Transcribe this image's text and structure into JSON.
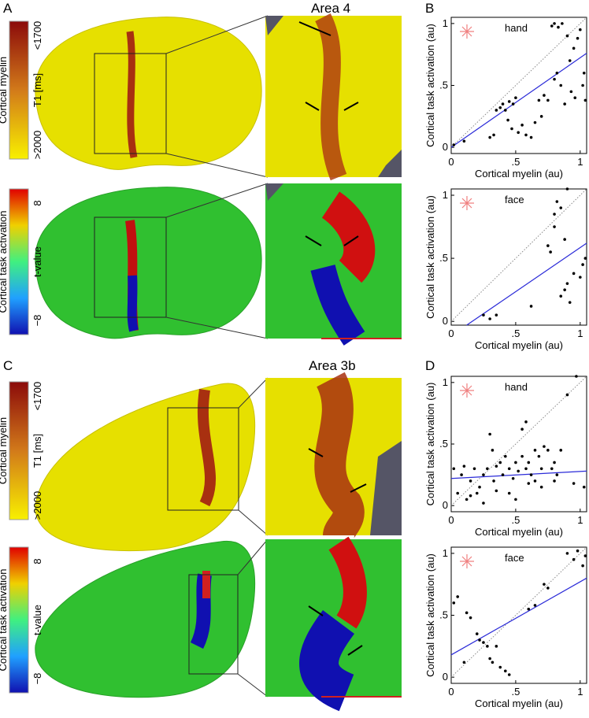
{
  "figure": {
    "panel_labels": [
      "A",
      "B",
      "C",
      "D"
    ],
    "area_labels": [
      "Area 4",
      "Area 3b"
    ],
    "colorbars": [
      {
        "title": "Cortical myelin",
        "unit": "T1 [ms]",
        "top": "<1700",
        "bottom": ">2000"
      },
      {
        "title": "Cortical task activation",
        "unit": "t-value",
        "top": "8",
        "bottom": "−8"
      },
      {
        "title": "Cortical myelin",
        "unit": "T1 [ms]",
        "top": "<1700",
        "bottom": ">2000"
      },
      {
        "title": "Cortical task activation",
        "unit": "t-value",
        "top": "8",
        "bottom": "−8"
      }
    ]
  },
  "chart_data": [
    {
      "type": "scatter",
      "title": "hand",
      "x_label": "Cortical myelin (au)",
      "y_label": "Cortical task activation (au)",
      "xlim": [
        0,
        1.05
      ],
      "ylim": [
        -0.05,
        1.05
      ],
      "xticks": [
        0,
        {
          "value": 0.5,
          "label": ".5"
        },
        1
      ],
      "yticks": [
        0,
        {
          "value": 0.5,
          "label": ".5"
        },
        1
      ],
      "color": "#000000",
      "identity_line": true,
      "fit_line": {
        "x": [
          0,
          1.05
        ],
        "y": [
          0,
          0.76
        ],
        "color": "#2a2ad8"
      },
      "x": [
        0.02,
        0.1,
        0.3,
        0.33,
        0.35,
        0.38,
        0.4,
        0.42,
        0.45,
        0.48,
        0.44,
        0.47,
        0.52,
        0.55,
        0.58,
        0.62,
        0.5,
        0.68,
        0.72,
        0.75,
        0.8,
        0.82,
        0.85,
        0.78,
        0.8,
        0.83,
        0.86,
        0.9,
        0.92,
        0.95,
        0.98,
        1.0,
        0.93,
        0.96,
        1.02,
        1.03,
        1.04,
        0.88,
        0.7,
        0.65
      ],
      "y": [
        0.02,
        0.05,
        0.08,
        0.1,
        0.3,
        0.32,
        0.35,
        0.3,
        0.37,
        0.35,
        0.22,
        0.15,
        0.12,
        0.18,
        0.1,
        0.08,
        0.4,
        0.38,
        0.42,
        0.38,
        0.55,
        0.6,
        0.5,
        0.98,
        1.0,
        0.97,
        1.0,
        0.9,
        0.7,
        0.8,
        0.88,
        0.95,
        0.45,
        0.4,
        0.5,
        0.6,
        0.38,
        0.35,
        0.25,
        0.2
      ]
    },
    {
      "type": "scatter",
      "title": "face",
      "x_label": "Cortical myelin (au)",
      "y_label": "Cortical task activation (au)",
      "xlim": [
        0,
        1.05
      ],
      "ylim": [
        -0.03,
        1.05
      ],
      "xticks": [
        0,
        {
          "value": 0.5,
          "label": ".5"
        },
        1
      ],
      "yticks": [
        0,
        {
          "value": 0.5,
          "label": ".5"
        },
        1
      ],
      "color": "#000000",
      "identity_line": true,
      "fit_line": {
        "x": [
          0.12,
          1.05
        ],
        "y": [
          -0.03,
          0.62
        ],
        "color": "#2a2ad8"
      },
      "x": [
        0.25,
        0.3,
        0.35,
        0.62,
        0.75,
        0.77,
        0.8,
        0.82,
        0.85,
        0.88,
        0.9,
        0.85,
        0.88,
        0.9,
        0.92,
        0.95,
        1.0,
        1.02,
        1.04,
        0.8
      ],
      "y": [
        0.05,
        0.02,
        0.05,
        0.12,
        0.6,
        0.55,
        0.75,
        0.95,
        0.9,
        0.65,
        1.05,
        0.2,
        0.25,
        0.3,
        0.15,
        0.38,
        0.35,
        0.45,
        0.5,
        0.85
      ]
    },
    {
      "type": "scatter",
      "title": "hand",
      "x_label": "Cortical myelin (au)",
      "y_label": "Cortical task activation (au)",
      "xlim": [
        0,
        1.05
      ],
      "ylim": [
        -0.05,
        1.05
      ],
      "xticks": [
        0,
        {
          "value": 0.5,
          "label": ".5"
        },
        1
      ],
      "yticks": [
        0,
        {
          "value": 0.5,
          "label": ".5"
        },
        1
      ],
      "color": "#000000",
      "identity_line": true,
      "fit_line": {
        "x": [
          0,
          1.05
        ],
        "y": [
          0.22,
          0.28
        ],
        "color": "#2a2ad8"
      },
      "x": [
        0.02,
        0.05,
        0.08,
        0.1,
        0.12,
        0.15,
        0.18,
        0.2,
        0.22,
        0.25,
        0.28,
        0.3,
        0.32,
        0.33,
        0.35,
        0.38,
        0.4,
        0.42,
        0.45,
        0.48,
        0.5,
        0.52,
        0.55,
        0.58,
        0.6,
        0.62,
        0.65,
        0.68,
        0.7,
        0.72,
        0.75,
        0.78,
        0.8,
        0.82,
        0.85,
        0.55,
        0.58,
        0.6,
        0.8,
        0.9,
        0.95,
        0.97,
        1.03,
        0.35,
        0.25,
        0.15,
        0.45,
        0.7,
        0.65,
        0.5
      ],
      "y": [
        0.3,
        0.1,
        0.25,
        0.32,
        0.05,
        0.2,
        0.3,
        0.1,
        0.15,
        0.25,
        0.3,
        0.58,
        0.45,
        0.2,
        0.32,
        0.35,
        0.25,
        0.4,
        0.3,
        0.22,
        0.35,
        0.28,
        0.4,
        0.3,
        0.35,
        0.25,
        0.45,
        0.4,
        0.3,
        0.48,
        0.45,
        0.3,
        0.35,
        0.25,
        0.45,
        0.62,
        0.68,
        0.18,
        0.2,
        0.9,
        0.18,
        1.05,
        0.15,
        0.12,
        0.02,
        0.08,
        0.1,
        0.15,
        0.2,
        0.05
      ]
    },
    {
      "type": "scatter",
      "title": "face",
      "x_label": "Cortical myelin (au)",
      "y_label": "Cortical task activation (au)",
      "xlim": [
        0,
        1.05
      ],
      "ylim": [
        -0.05,
        1.05
      ],
      "xticks": [
        0,
        {
          "value": 0.5,
          "label": ".5"
        },
        1
      ],
      "yticks": [
        0,
        {
          "value": 0.5,
          "label": ".5"
        },
        1
      ],
      "color": "#000000",
      "identity_line": true,
      "fit_line": {
        "x": [
          0,
          1.05
        ],
        "y": [
          0.18,
          0.8
        ],
        "color": "#2a2ad8"
      },
      "x": [
        0.02,
        0.05,
        0.12,
        0.15,
        0.2,
        0.22,
        0.25,
        0.28,
        0.3,
        0.32,
        0.35,
        0.38,
        0.42,
        0.45,
        0.6,
        0.65,
        0.72,
        0.75,
        0.9,
        0.95,
        0.98,
        1.02,
        1.04,
        0.1
      ],
      "y": [
        0.6,
        0.65,
        0.52,
        0.48,
        0.35,
        0.3,
        0.28,
        0.25,
        0.15,
        0.12,
        0.25,
        0.08,
        0.05,
        0.02,
        0.55,
        0.58,
        0.75,
        0.72,
        1.0,
        0.95,
        1.02,
        0.9,
        0.98,
        0.12
      ]
    }
  ]
}
